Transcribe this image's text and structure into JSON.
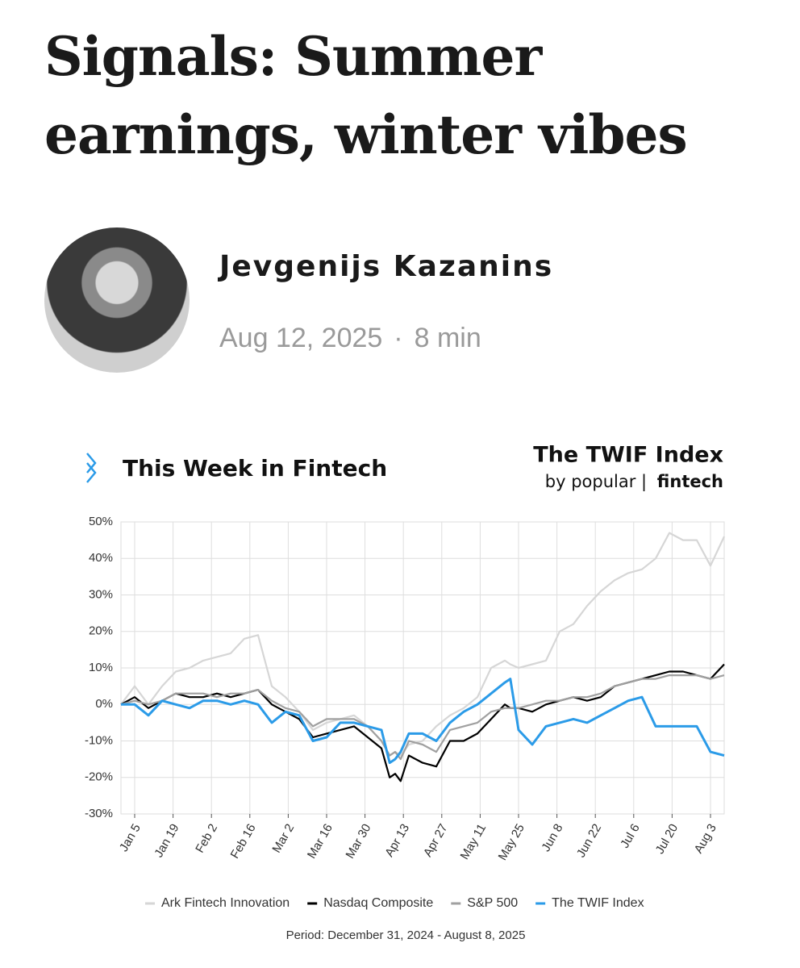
{
  "header": {
    "title": "Signals: Summer earnings, winter vibes",
    "author": "Jevgenijs Kazanins",
    "date": "Aug 12, 2025",
    "separator": "·",
    "read_time": "8 min"
  },
  "chart_data": {
    "type": "line",
    "brand": "This Week in Fintech",
    "title": "The TWIF Index",
    "byline_prefix": "by popular |",
    "byline_brand": "fintech",
    "period": "Period: December 31, 2024 - August 8, 2025",
    "x": [
      0,
      5,
      10,
      15,
      20,
      25,
      30,
      35,
      40,
      45,
      50,
      55,
      60,
      65,
      70,
      75,
      80,
      85,
      90,
      95,
      98,
      100,
      102,
      105,
      110,
      115,
      120,
      125,
      130,
      135,
      140,
      142,
      145,
      150,
      155,
      160,
      165,
      170,
      175,
      180,
      185,
      190,
      195,
      200,
      205,
      210,
      215,
      220
    ],
    "xlim": [
      0,
      220
    ],
    "xticks": [
      {
        "value": 5,
        "label": "Jan 5"
      },
      {
        "value": 19,
        "label": "Jan 19"
      },
      {
        "value": 33,
        "label": "Feb 2"
      },
      {
        "value": 47,
        "label": "Feb 16"
      },
      {
        "value": 61,
        "label": "Mar 2"
      },
      {
        "value": 75,
        "label": "Mar 16"
      },
      {
        "value": 89,
        "label": "Mar 30"
      },
      {
        "value": 103,
        "label": "Apr 13"
      },
      {
        "value": 117,
        "label": "Apr 27"
      },
      {
        "value": 131,
        "label": "May 11"
      },
      {
        "value": 145,
        "label": "May 25"
      },
      {
        "value": 159,
        "label": "Jun 8"
      },
      {
        "value": 173,
        "label": "Jun 22"
      },
      {
        "value": 187,
        "label": "Jul 6"
      },
      {
        "value": 201,
        "label": "Jul 20"
      },
      {
        "value": 215,
        "label": "Aug 3"
      }
    ],
    "ylim": [
      -30,
      50
    ],
    "yticks": [
      {
        "value": -30,
        "label": "-30%"
      },
      {
        "value": -20,
        "label": "-20%"
      },
      {
        "value": -10,
        "label": "-10%"
      },
      {
        "value": 0,
        "label": "0%"
      },
      {
        "value": 10,
        "label": "10%"
      },
      {
        "value": 20,
        "label": "20%"
      },
      {
        "value": 30,
        "label": "30%"
      },
      {
        "value": 40,
        "label": "40%"
      },
      {
        "value": 50,
        "label": "50%"
      }
    ],
    "grid": true,
    "series": [
      {
        "name": "Ark Fintech Innovation",
        "color": "#d6d6d6",
        "values": [
          0,
          5,
          0,
          5,
          9,
          10,
          12,
          13,
          14,
          18,
          19,
          5,
          2,
          -2,
          -7,
          -5,
          -4,
          -3,
          -6,
          -10,
          -14,
          -13,
          -14,
          -11,
          -10,
          -6,
          -3,
          -1,
          2,
          10,
          12,
          11,
          10,
          11,
          12,
          20,
          22,
          27,
          31,
          34,
          36,
          37,
          40,
          47,
          45,
          45,
          38,
          46
        ]
      },
      {
        "name": "Nasdaq Composite",
        "color": "#000000",
        "values": [
          0,
          2,
          -1,
          1,
          3,
          2,
          2,
          3,
          2,
          3,
          4,
          0,
          -2,
          -4,
          -9,
          -8,
          -7,
          -6,
          -9,
          -12,
          -20,
          -19,
          -21,
          -14,
          -16,
          -17,
          -10,
          -10,
          -8,
          -4,
          0,
          -1,
          -1,
          -2,
          0,
          1,
          2,
          1,
          2,
          5,
          6,
          7,
          8,
          9,
          9,
          8,
          7,
          11
        ]
      },
      {
        "name": "S&P 500",
        "color": "#a0a0a0",
        "values": [
          0,
          1,
          0,
          1,
          3,
          3,
          3,
          2,
          3,
          3,
          4,
          1,
          -1,
          -2,
          -6,
          -4,
          -4,
          -4,
          -6,
          -10,
          -14,
          -13,
          -15,
          -10,
          -11,
          -13,
          -7,
          -6,
          -5,
          -2,
          -1,
          -1,
          -1,
          0,
          1,
          1,
          2,
          2,
          3,
          5,
          6,
          7,
          7,
          8,
          8,
          8,
          7,
          8
        ]
      },
      {
        "name": "The TWIF Index",
        "color": "#2b9be8",
        "values": [
          0,
          0,
          -3,
          1,
          0,
          -1,
          1,
          1,
          0,
          1,
          0,
          -5,
          -2,
          -3,
          -10,
          -9,
          -5,
          -5,
          -6,
          -7,
          -16,
          -15,
          -13,
          -8,
          -8,
          -10,
          -5,
          -2,
          0,
          3,
          6,
          7,
          -7,
          -11,
          -6,
          -5,
          -4,
          -5,
          -3,
          -1,
          1,
          2,
          -6,
          -6,
          -6,
          -6,
          -13,
          -14
        ]
      }
    ]
  }
}
